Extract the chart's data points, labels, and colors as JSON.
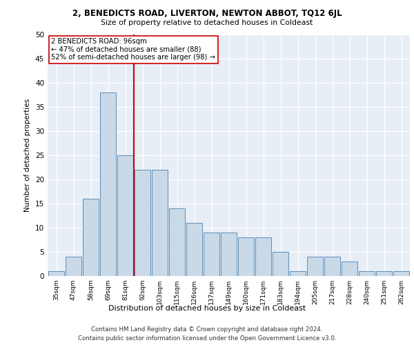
{
  "title1": "2, BENEDICTS ROAD, LIVERTON, NEWTON ABBOT, TQ12 6JL",
  "title2": "Size of property relative to detached houses in Coldeast",
  "xlabel": "Distribution of detached houses by size in Coldeast",
  "ylabel": "Number of detached properties",
  "categories": [
    "35sqm",
    "47sqm",
    "58sqm",
    "69sqm",
    "81sqm",
    "92sqm",
    "103sqm",
    "115sqm",
    "126sqm",
    "137sqm",
    "149sqm",
    "160sqm",
    "171sqm",
    "183sqm",
    "194sqm",
    "205sqm",
    "217sqm",
    "228sqm",
    "240sqm",
    "251sqm",
    "262sqm"
  ],
  "values": [
    1,
    4,
    16,
    38,
    25,
    22,
    22,
    14,
    11,
    9,
    9,
    8,
    8,
    5,
    1,
    4,
    4,
    3,
    1,
    1,
    1
  ],
  "bar_color": "#c9d9e8",
  "bar_edge_color": "#5b8db8",
  "vline_x": 4.5,
  "vline_color": "#cc0000",
  "annotation_text": "2 BENEDICTS ROAD: 96sqm\n← 47% of detached houses are smaller (88)\n52% of semi-detached houses are larger (98) →",
  "annotation_box_color": "#ffffff",
  "annotation_box_edge": "#cc0000",
  "ylim": [
    0,
    50
  ],
  "yticks": [
    0,
    5,
    10,
    15,
    20,
    25,
    30,
    35,
    40,
    45,
    50
  ],
  "background_color": "#e8eef5",
  "footer1": "Contains HM Land Registry data © Crown copyright and database right 2024.",
  "footer2": "Contains public sector information licensed under the Open Government Licence v3.0."
}
